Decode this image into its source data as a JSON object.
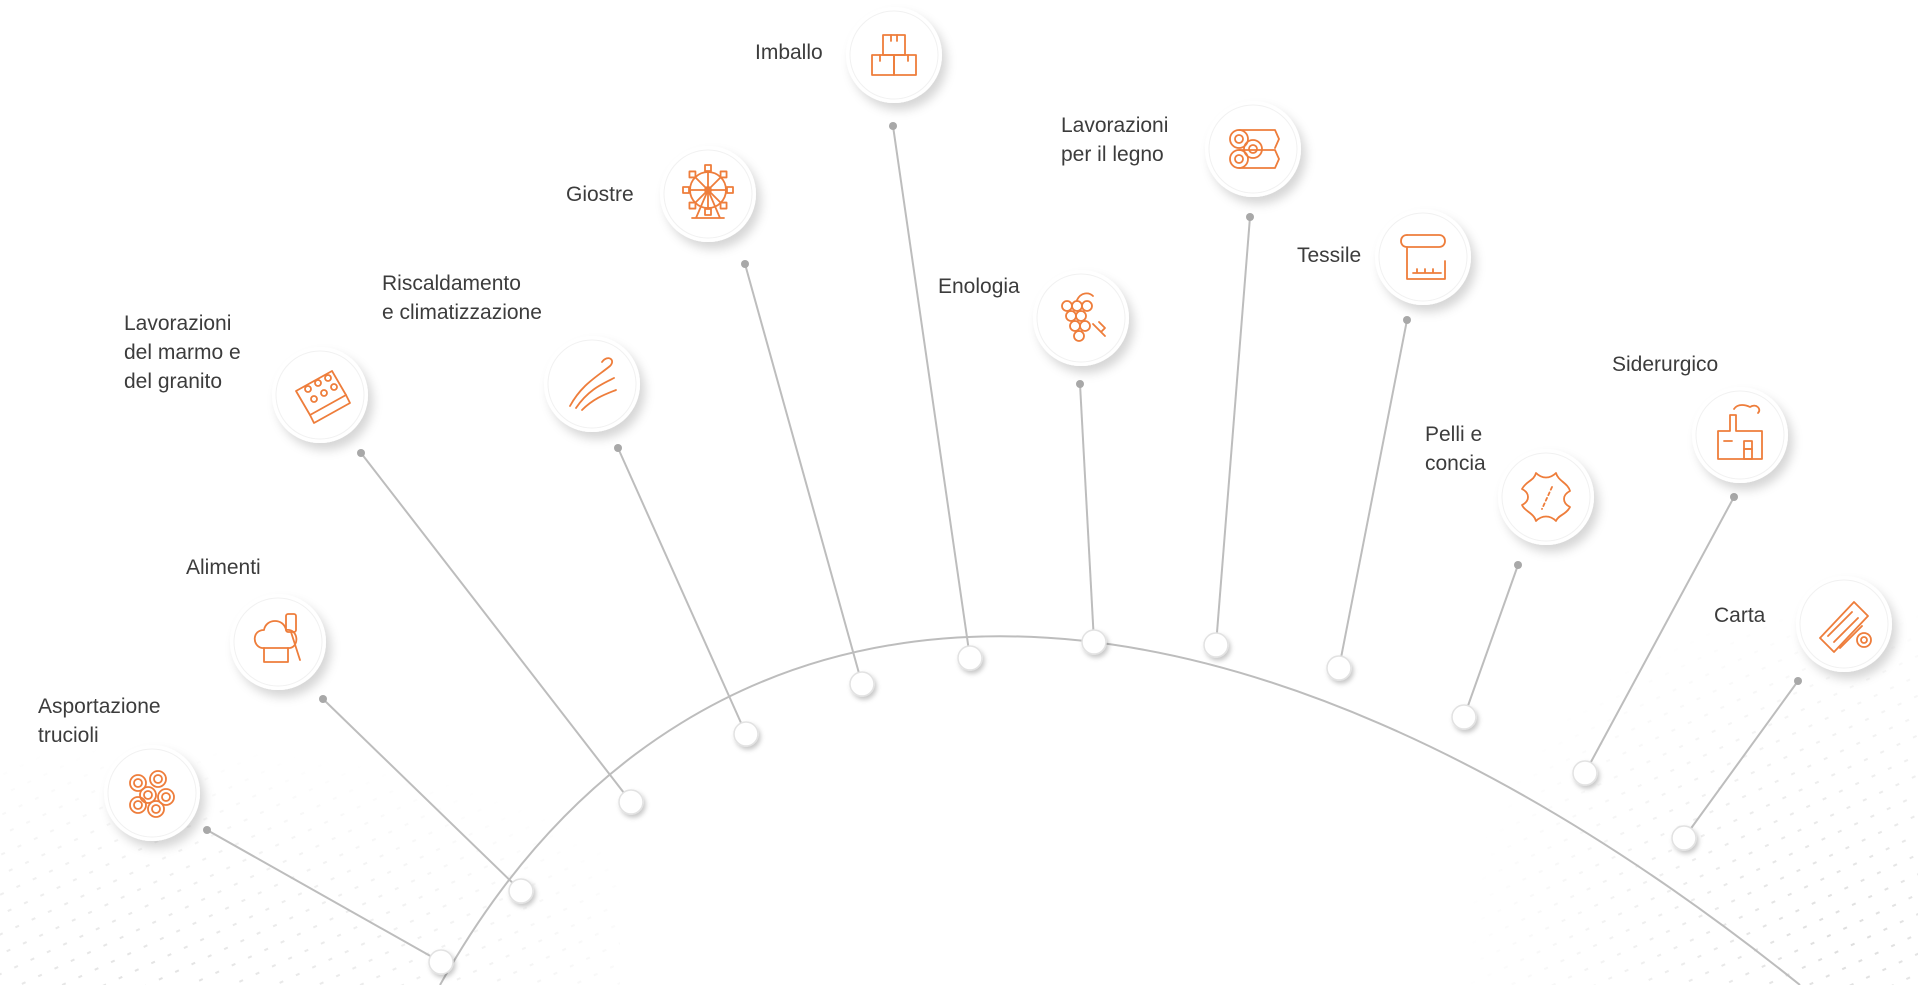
{
  "colors": {
    "accent": "#ee7d3b",
    "line": "#bdbdbd",
    "text": "#3c3c3c"
  },
  "sectors": [
    {
      "id": "asportazione-trucioli",
      "label": "Asportazione\ntrucioli",
      "icon": "shavings-icon"
    },
    {
      "id": "alimenti",
      "label": "Alimenti",
      "icon": "chef-hat-icon"
    },
    {
      "id": "marmo-granito",
      "label": "Lavorazioni\ndel marmo e\ndel granito",
      "icon": "stone-cutter-icon"
    },
    {
      "id": "riscaldamento",
      "label": "Riscaldamento\ne climatizzazione",
      "icon": "air-flow-icon"
    },
    {
      "id": "giostre",
      "label": "Giostre",
      "icon": "ferris-wheel-icon"
    },
    {
      "id": "imballo",
      "label": "Imballo",
      "icon": "boxes-icon"
    },
    {
      "id": "enologia",
      "label": "Enologia",
      "icon": "grapes-icon"
    },
    {
      "id": "legno",
      "label": "Lavorazioni\nper il legno",
      "icon": "logs-icon"
    },
    {
      "id": "tessile",
      "label": "Tessile",
      "icon": "fabric-roll-icon"
    },
    {
      "id": "pelli-concia",
      "label": "Pelli e\nconcia",
      "icon": "leather-icon"
    },
    {
      "id": "siderurgico",
      "label": "Siderurgico",
      "icon": "factory-icon"
    },
    {
      "id": "carta",
      "label": "Carta",
      "icon": "paper-roll-icon"
    }
  ]
}
